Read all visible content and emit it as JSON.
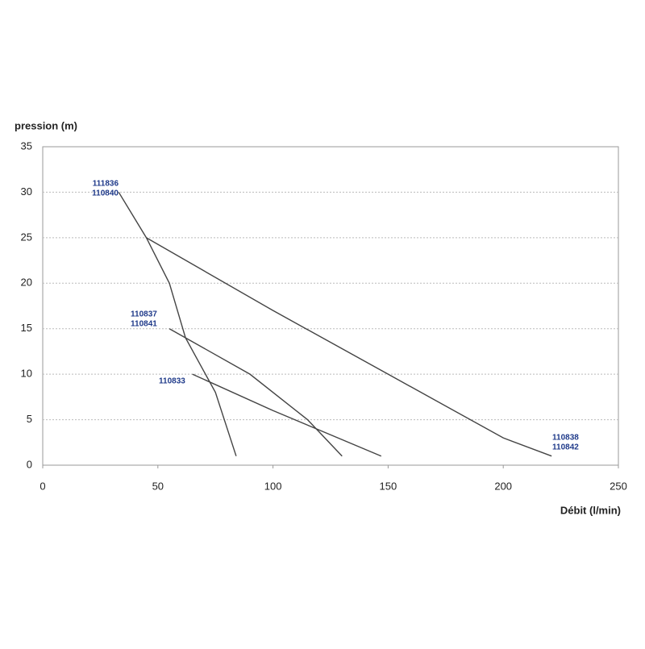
{
  "chart_data": {
    "type": "line",
    "ylabel": "pression (m)",
    "xlabel": "Débit (l/min)",
    "xlim": [
      0,
      250
    ],
    "xticks": [
      0,
      50,
      100,
      150,
      200,
      250
    ],
    "ylim": [
      0,
      35
    ],
    "yticks": [
      0,
      5,
      10,
      15,
      20,
      25,
      30,
      35
    ],
    "grid": true,
    "line_color": "#444444",
    "label_color": "#1f3a8a",
    "series": [
      {
        "names": [
          "111836",
          "110840"
        ],
        "x": [
          33,
          45,
          55,
          62,
          75,
          84
        ],
        "values": [
          30,
          25,
          20,
          14,
          8,
          1
        ]
      },
      {
        "names": [
          "110838",
          "110842"
        ],
        "x": [
          45,
          100,
          150,
          200,
          221
        ],
        "values": [
          25,
          17,
          10,
          3,
          1
        ]
      },
      {
        "names": [
          "110837",
          "110841"
        ],
        "x": [
          55,
          90,
          115,
          130
        ],
        "values": [
          15,
          10,
          5,
          1
        ]
      },
      {
        "names": [
          "110833"
        ],
        "x": [
          65,
          100,
          147
        ],
        "values": [
          10,
          6,
          1
        ]
      }
    ]
  }
}
